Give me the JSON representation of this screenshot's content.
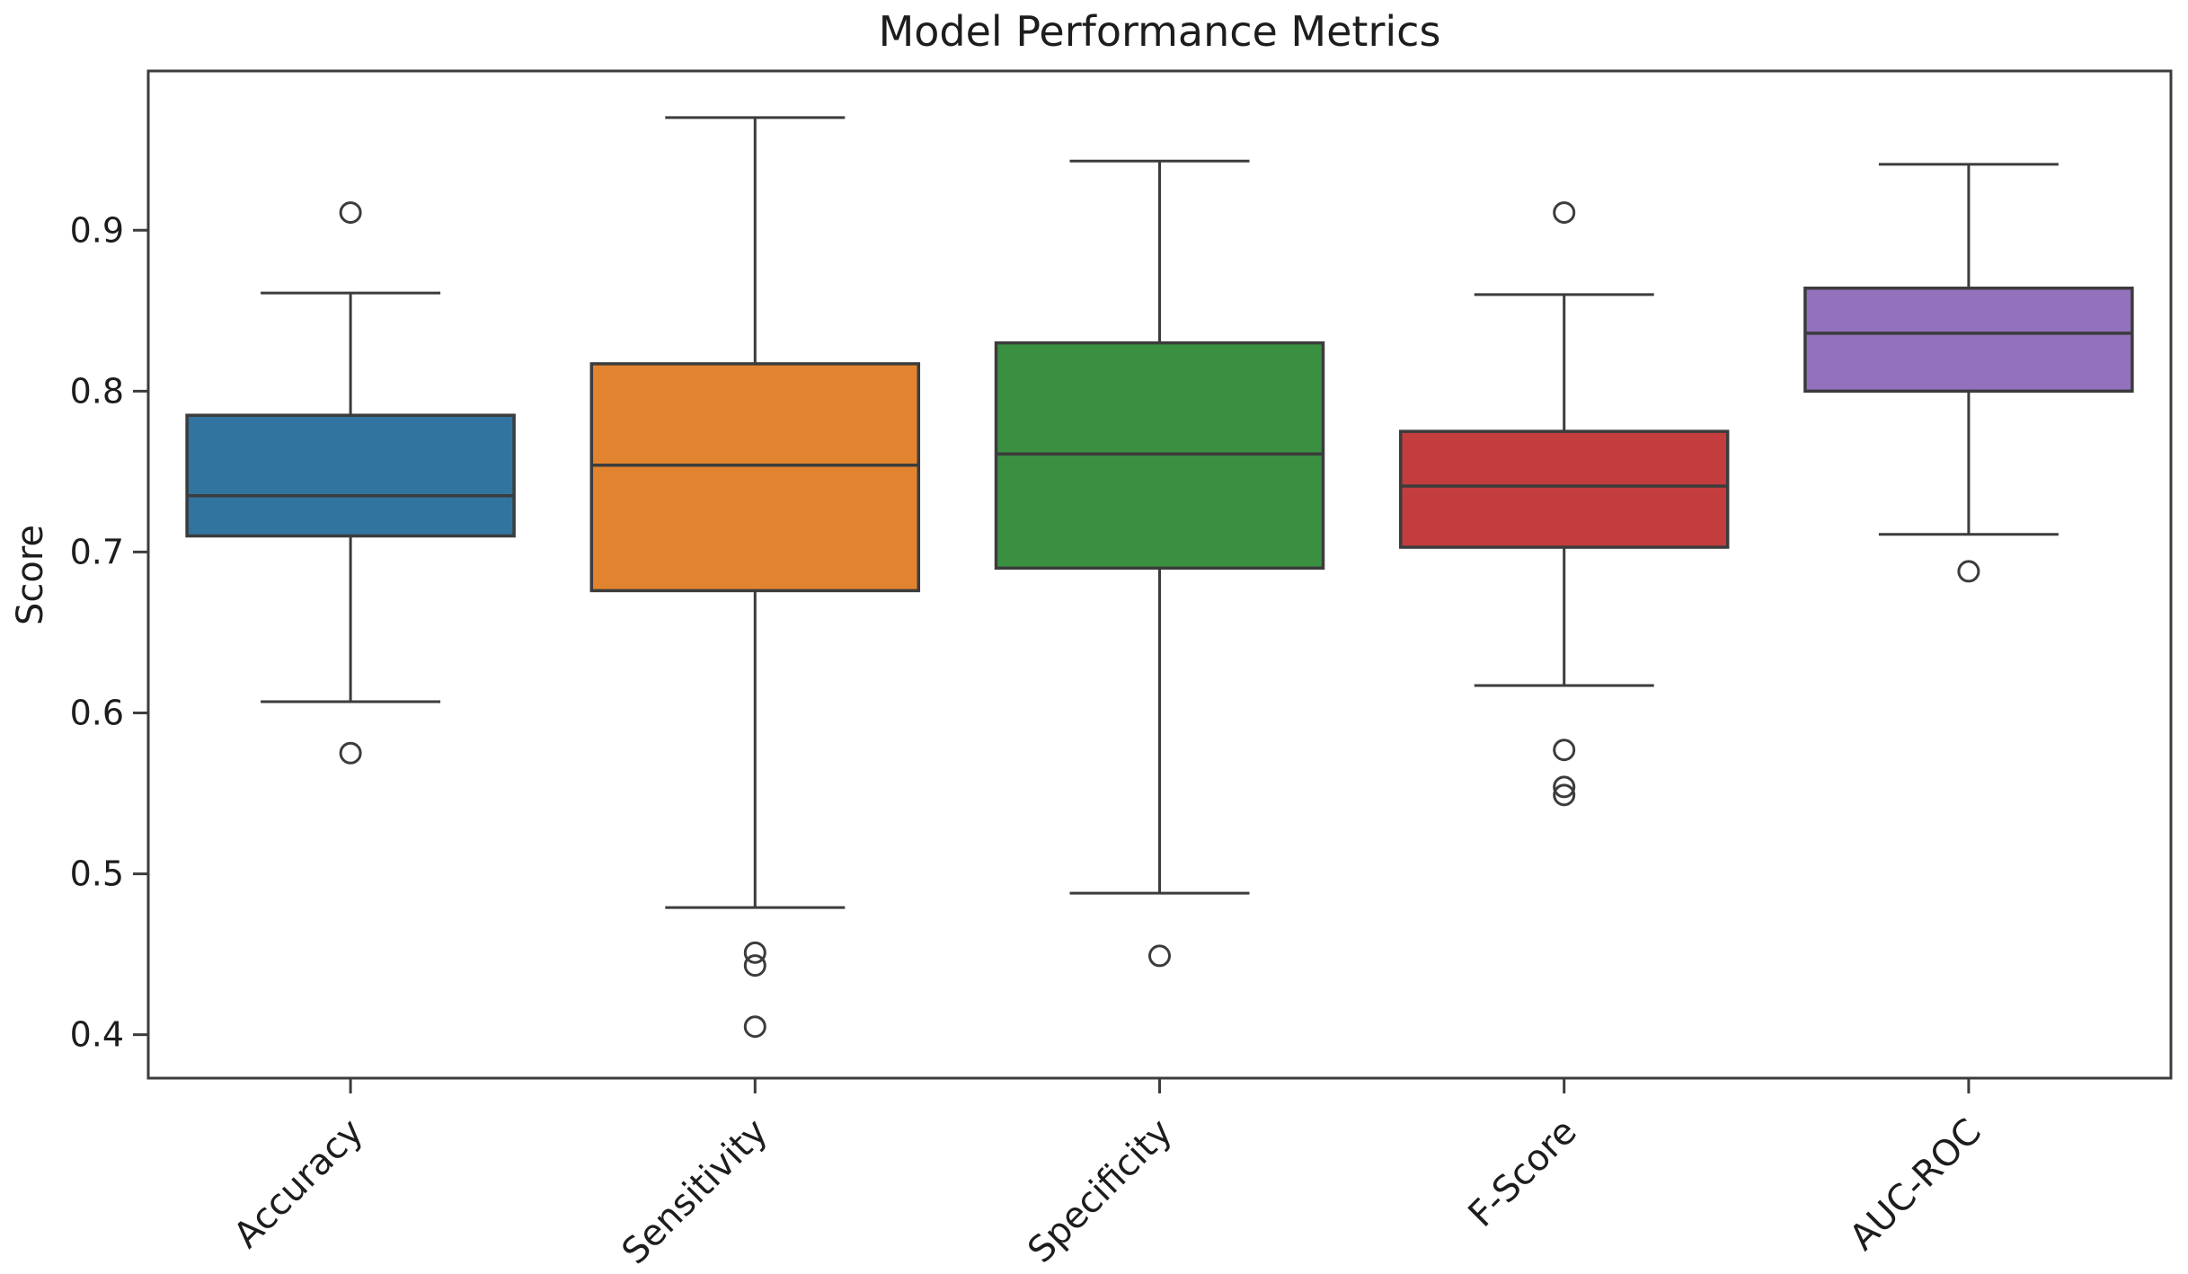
{
  "chart_data": {
    "type": "box",
    "title": "Model Performance Metrics",
    "xlabel": "",
    "ylabel": "Score",
    "categories": [
      "Accuracy",
      "Sensitivity",
      "Specificity",
      "F-Score",
      "AUC-ROC"
    ],
    "box_colors": [
      "#3274a0",
      "#e2842f",
      "#3a9040",
      "#c43d3e",
      "#9371bd"
    ],
    "yticks": [
      0.4,
      0.5,
      0.6,
      0.7,
      0.8,
      0.9
    ],
    "ylim": [
      0.373,
      0.999
    ],
    "grid": false,
    "legend": null,
    "x_tick_rotation": 45,
    "series": [
      {
        "name": "Accuracy",
        "whisker_low": 0.607,
        "q1": 0.71,
        "median": 0.735,
        "q3": 0.785,
        "whisker_high": 0.861,
        "outliers": [
          0.911,
          0.575
        ]
      },
      {
        "name": "Sensitivity",
        "whisker_low": 0.479,
        "q1": 0.676,
        "median": 0.754,
        "q3": 0.817,
        "whisker_high": 0.97,
        "outliers": [
          0.451,
          0.443,
          0.405
        ]
      },
      {
        "name": "Specificity",
        "whisker_low": 0.488,
        "q1": 0.69,
        "median": 0.761,
        "q3": 0.83,
        "whisker_high": 0.943,
        "outliers": [
          0.449
        ]
      },
      {
        "name": "F-Score",
        "whisker_low": 0.617,
        "q1": 0.703,
        "median": 0.741,
        "q3": 0.775,
        "whisker_high": 0.86,
        "outliers": [
          0.911,
          0.577,
          0.554,
          0.549
        ]
      },
      {
        "name": "AUC-ROC",
        "whisker_low": 0.711,
        "q1": 0.8,
        "median": 0.836,
        "q3": 0.864,
        "whisker_high": 0.941,
        "outliers": [
          0.688
        ]
      }
    ]
  }
}
